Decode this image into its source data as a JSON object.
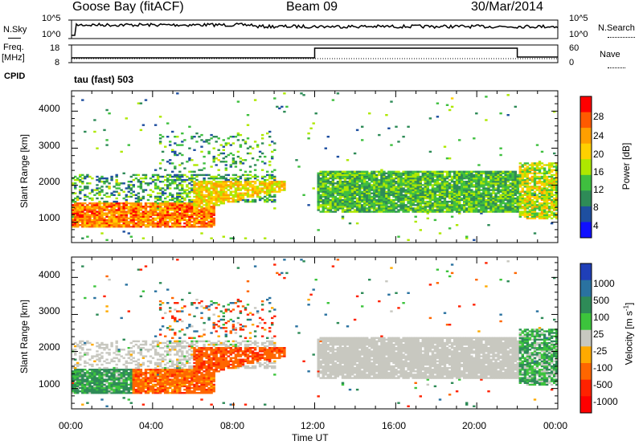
{
  "header": {
    "station": "Goose Bay (fitACF)",
    "beam": "Beam 09",
    "date": "30/Mar/2014"
  },
  "noise_panel": {
    "left_label": "N.Sky",
    "right_label": "N.Search",
    "left_ticks": [
      "10^5",
      "10^0"
    ],
    "right_ticks": [
      "10^5",
      "10^0"
    ]
  },
  "freq_panel": {
    "left_label_1": "Freq.",
    "left_label_2": "[MHz]",
    "right_label": "Nave",
    "left_ticks": [
      "18",
      "8"
    ],
    "right_ticks": [
      "60",
      "0"
    ],
    "freq_steps": [
      {
        "from_hour": 0,
        "to_hour": 12,
        "mhz": 10.5
      },
      {
        "from_hour": 12,
        "to_hour": 22,
        "mhz": 16.5
      },
      {
        "from_hour": 22,
        "to_hour": 24,
        "mhz": 11.0
      }
    ]
  },
  "cpid": {
    "label": "CPID",
    "value": "tau (fast) 503"
  },
  "chart_data": [
    {
      "type": "heatmap",
      "title": "",
      "ylabel": "Slant Range [km]",
      "yticks": [
        "4000",
        "3000",
        "2000",
        "1000"
      ],
      "ylim": [
        450,
        4550
      ],
      "xlim": [
        0,
        24
      ],
      "colorbar_label": "Power [dB]",
      "colorbar_ticks": [
        "28",
        "24",
        "20",
        "16",
        "12",
        "8",
        "4"
      ],
      "colorbar_colors": [
        "#ff0000",
        "#ff5a00",
        "#ff9f00",
        "#ffd000",
        "#aee800",
        "#3fbf3f",
        "#2e8b57",
        "#1e4fa0",
        "#1010ff"
      ]
    },
    {
      "type": "heatmap",
      "title": "",
      "ylabel": "Slant Range [km]",
      "yticks": [
        "4000",
        "3000",
        "2000",
        "1000"
      ],
      "ylim": [
        450,
        4550
      ],
      "xlim": [
        0,
        24
      ],
      "colorbar_label": "Velocity [m s",
      "colorbar_label_sup": "-1",
      "colorbar_label_end": "]",
      "colorbar_ticks": [
        "1000",
        "500",
        "100",
        "25",
        "-25",
        "-100",
        "-500",
        "-1000"
      ],
      "colorbar_colors": [
        "#1f3fb8",
        "#2a72a0",
        "#2e8b57",
        "#3cc43c",
        "#c8c8c0",
        "#ffaa00",
        "#ff6600",
        "#ff2200",
        "#ff0000"
      ]
    }
  ],
  "x_axis": {
    "ticks": [
      "00:00",
      "04:00",
      "08:00",
      "12:00",
      "16:00",
      "20:00",
      "00:00"
    ],
    "label": "Time UT"
  }
}
